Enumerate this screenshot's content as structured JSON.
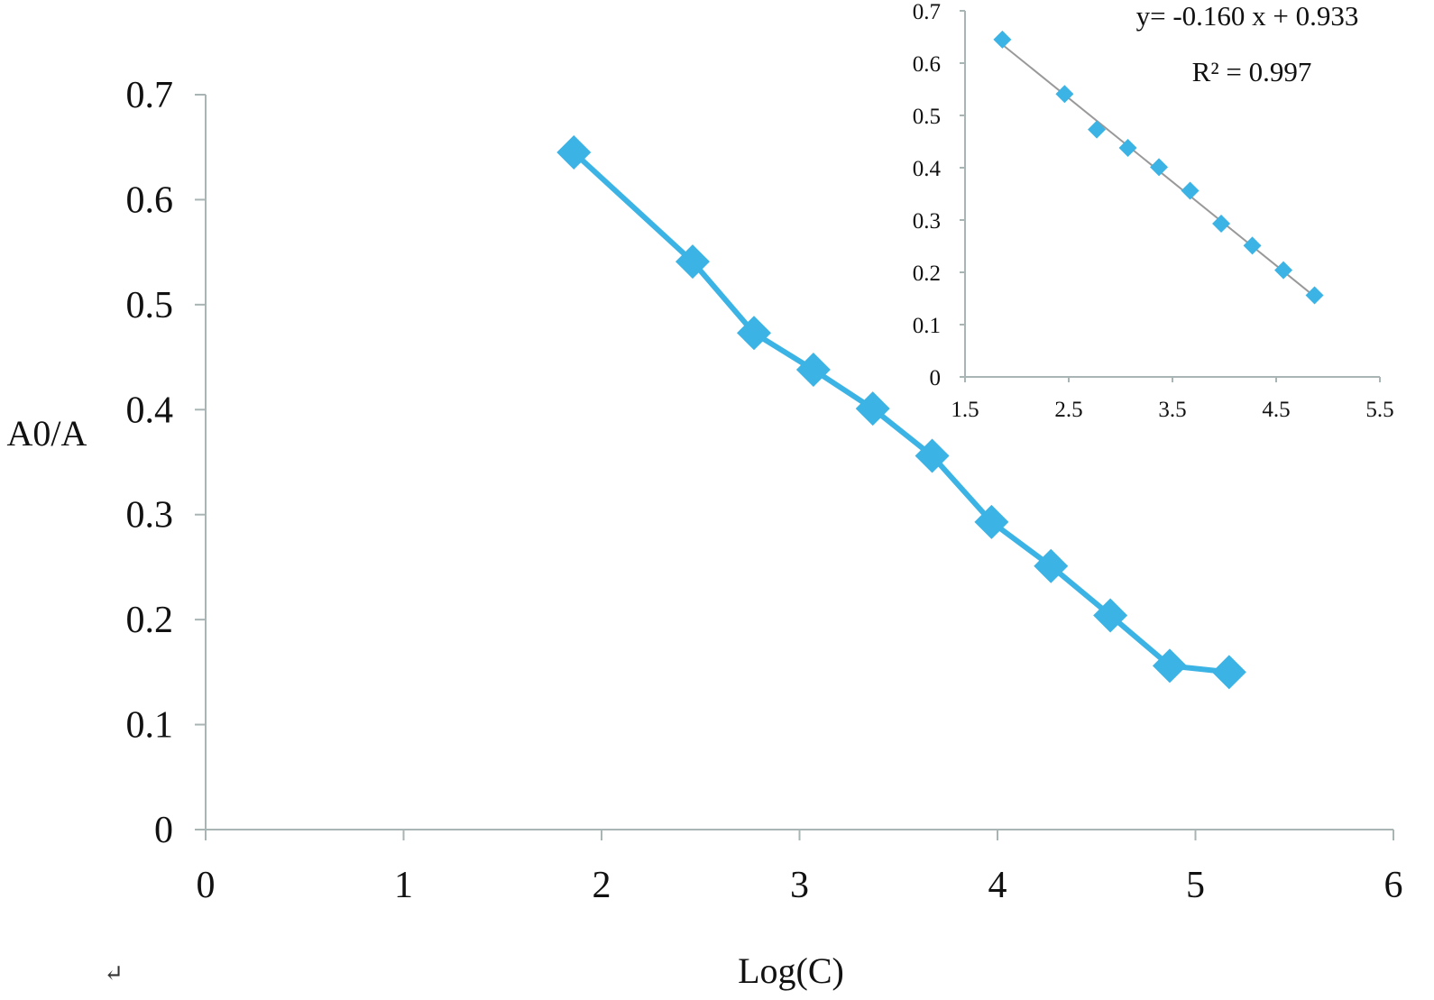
{
  "chart_data": [
    {
      "type": "line",
      "xlabel": "Log(C)",
      "ylabel": "A0/A",
      "xlim": [
        0,
        6
      ],
      "ylim": [
        0,
        0.7
      ],
      "xticks": [
        "0",
        "1",
        "2",
        "3",
        "4",
        "5",
        "6"
      ],
      "yticks": [
        "0",
        "0.1",
        "0.2",
        "0.3",
        "0.4",
        "0.5",
        "0.6",
        "0.7"
      ],
      "grid": false,
      "marker": "diamond",
      "series": [
        {
          "color": "#3bb4e5",
          "x": [
            1.86,
            2.46,
            2.77,
            3.07,
            3.37,
            3.67,
            3.97,
            4.27,
            4.57,
            4.87,
            5.17
          ],
          "y": [
            0.645,
            0.541,
            0.473,
            0.438,
            0.401,
            0.356,
            0.293,
            0.251,
            0.204,
            0.156,
            0.15
          ]
        }
      ]
    },
    {
      "type": "scatter",
      "xlim": [
        1.5,
        5.5
      ],
      "ylim": [
        0,
        0.7
      ],
      "xticks": [
        "1.5",
        "2.5",
        "3.5",
        "4.5",
        "5.5"
      ],
      "yticks": [
        "0",
        "0.1",
        "0.2",
        "0.3",
        "0.4",
        "0.5",
        "0.6",
        "0.7"
      ],
      "grid": false,
      "marker": "diamond",
      "series": [
        {
          "color": "#3bb4e5",
          "x": [
            1.86,
            2.46,
            2.77,
            3.07,
            3.37,
            3.67,
            3.97,
            4.27,
            4.57,
            4.87
          ],
          "y": [
            0.645,
            0.541,
            0.473,
            0.438,
            0.401,
            0.356,
            0.293,
            0.251,
            0.204,
            0.156
          ]
        }
      ],
      "trendline": {
        "slope": -0.16,
        "intercept": 0.933,
        "color": "#999999"
      },
      "annotations": {
        "equation": "y= -0.160 x + 0.933",
        "r2": "R² = 0.997"
      }
    }
  ],
  "page": {
    "paragraph_mark": "↵"
  }
}
